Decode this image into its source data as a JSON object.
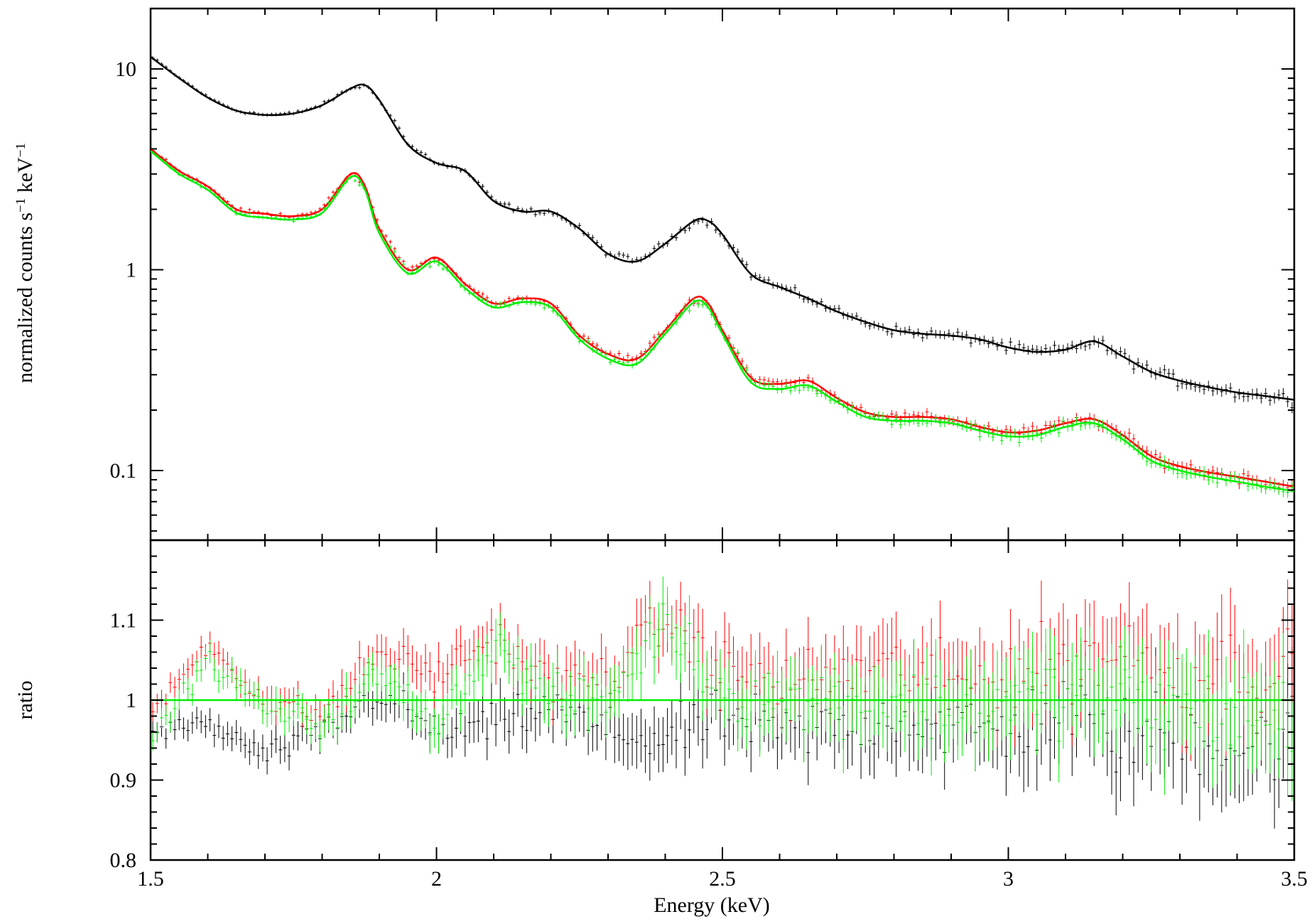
{
  "chart_data": [
    {
      "panel": "top",
      "type": "line",
      "xlabel": "Energy (keV)",
      "ylabel": "normalized counts s",
      "ylabel_sup1": "−1",
      "ylabel_mid": " keV",
      "ylabel_sup2": "−1",
      "yscale": "log",
      "xlim": [
        1.5,
        3.5
      ],
      "ylim": [
        0.045,
        20
      ],
      "xticks": [
        1.5,
        2,
        2.5,
        3,
        3.5
      ],
      "xtick_labels": [
        "1.5",
        "2",
        "2.5",
        "3",
        "3.5"
      ],
      "yticks": [
        0.1,
        1,
        10
      ],
      "ytick_labels": [
        "0.1",
        "1",
        "10"
      ],
      "grid": false,
      "series": [
        {
          "color": "#000000",
          "x": [
            1.5,
            1.55,
            1.6,
            1.65,
            1.7,
            1.75,
            1.8,
            1.85,
            1.875,
            1.9,
            1.95,
            2.0,
            2.05,
            2.1,
            2.15,
            2.2,
            2.25,
            2.3,
            2.35,
            2.4,
            2.45,
            2.475,
            2.5,
            2.55,
            2.6,
            2.65,
            2.7,
            2.75,
            2.8,
            2.85,
            2.9,
            2.95,
            3.0,
            3.05,
            3.1,
            3.15,
            3.2,
            3.25,
            3.3,
            3.35,
            3.4,
            3.45,
            3.5
          ],
          "y": [
            11.5,
            9.0,
            7.2,
            6.2,
            5.9,
            6.0,
            6.6,
            8.0,
            8.3,
            7.0,
            4.2,
            3.4,
            3.1,
            2.2,
            1.95,
            1.95,
            1.6,
            1.2,
            1.1,
            1.35,
            1.75,
            1.75,
            1.5,
            0.95,
            0.82,
            0.72,
            0.62,
            0.55,
            0.5,
            0.48,
            0.47,
            0.45,
            0.41,
            0.39,
            0.4,
            0.44,
            0.37,
            0.31,
            0.28,
            0.26,
            0.245,
            0.235,
            0.225
          ]
        },
        {
          "color": "#ff0000",
          "x": [
            1.5,
            1.55,
            1.6,
            1.65,
            1.7,
            1.75,
            1.8,
            1.85,
            1.875,
            1.9,
            1.95,
            2.0,
            2.05,
            2.1,
            2.15,
            2.2,
            2.25,
            2.3,
            2.35,
            2.4,
            2.45,
            2.475,
            2.5,
            2.55,
            2.6,
            2.65,
            2.7,
            2.75,
            2.8,
            2.85,
            2.9,
            2.95,
            3.0,
            3.05,
            3.1,
            3.15,
            3.2,
            3.25,
            3.3,
            3.35,
            3.4,
            3.45,
            3.5
          ],
          "y": [
            4.0,
            3.1,
            2.6,
            2.0,
            1.9,
            1.85,
            2.0,
            3.0,
            2.6,
            1.6,
            1.0,
            1.15,
            0.85,
            0.68,
            0.72,
            0.68,
            0.47,
            0.38,
            0.36,
            0.5,
            0.72,
            0.68,
            0.5,
            0.29,
            0.27,
            0.28,
            0.23,
            0.195,
            0.185,
            0.185,
            0.18,
            0.165,
            0.155,
            0.158,
            0.172,
            0.18,
            0.15,
            0.118,
            0.105,
            0.098,
            0.093,
            0.088,
            0.083
          ]
        },
        {
          "color": "#00ee00",
          "x": [
            1.5,
            1.55,
            1.6,
            1.65,
            1.7,
            1.75,
            1.8,
            1.85,
            1.875,
            1.9,
            1.95,
            2.0,
            2.05,
            2.1,
            2.15,
            2.2,
            2.25,
            2.3,
            2.35,
            2.4,
            2.45,
            2.475,
            2.5,
            2.55,
            2.6,
            2.65,
            2.7,
            2.75,
            2.8,
            2.85,
            2.9,
            2.95,
            3.0,
            3.05,
            3.1,
            3.15,
            3.2,
            3.25,
            3.3,
            3.35,
            3.4,
            3.45,
            3.5
          ],
          "y": [
            3.9,
            3.0,
            2.5,
            1.92,
            1.82,
            1.78,
            1.92,
            2.9,
            2.5,
            1.52,
            0.96,
            1.1,
            0.81,
            0.65,
            0.69,
            0.65,
            0.45,
            0.36,
            0.34,
            0.48,
            0.69,
            0.65,
            0.48,
            0.275,
            0.255,
            0.265,
            0.22,
            0.185,
            0.177,
            0.177,
            0.172,
            0.158,
            0.148,
            0.15,
            0.165,
            0.172,
            0.143,
            0.112,
            0.1,
            0.093,
            0.088,
            0.083,
            0.079
          ]
        }
      ]
    },
    {
      "panel": "bottom",
      "type": "scatter",
      "xlabel": "Energy (keV)",
      "ylabel": "ratio",
      "xlim": [
        1.5,
        3.5
      ],
      "ylim": [
        0.8,
        1.2
      ],
      "xticks": [
        1.5,
        2,
        2.5,
        3,
        3.5
      ],
      "xtick_labels": [
        "1.5",
        "2",
        "2.5",
        "3",
        "3.5"
      ],
      "yticks": [
        0.8,
        0.9,
        1.0,
        1.1
      ],
      "ytick_labels": [
        "0.8",
        "0.9",
        "1",
        "1.1"
      ],
      "reference_line": {
        "y": 1.0,
        "color": "#00ee00"
      },
      "grid": false,
      "series": [
        {
          "color": "#000000",
          "x": [
            1.5,
            1.6,
            1.7,
            1.8,
            1.9,
            2.0,
            2.1,
            2.2,
            2.3,
            2.4,
            2.5,
            2.6,
            2.7,
            2.8,
            2.9,
            3.0,
            3.1,
            3.2,
            3.3,
            3.4,
            3.5
          ],
          "y": [
            0.96,
            0.97,
            0.93,
            0.96,
            1.01,
            0.96,
            0.97,
            0.99,
            0.96,
            0.95,
            0.98,
            0.96,
            0.97,
            0.98,
            0.97,
            0.96,
            0.99,
            0.95,
            0.97,
            0.94,
            0.96
          ]
        },
        {
          "color": "#ff0000",
          "x": [
            1.5,
            1.6,
            1.7,
            1.8,
            1.9,
            2.0,
            2.1,
            2.2,
            2.3,
            2.4,
            2.5,
            2.6,
            2.7,
            2.8,
            2.9,
            3.0,
            3.1,
            3.2,
            3.3,
            3.4,
            3.5
          ],
          "y": [
            0.98,
            1.07,
            1.0,
            0.98,
            1.06,
            1.03,
            1.08,
            1.02,
            1.03,
            1.1,
            1.04,
            1.02,
            1.03,
            1.04,
            1.02,
            1.03,
            1.05,
            1.06,
            1.03,
            1.04,
            1.03
          ]
        },
        {
          "color": "#00ee00",
          "x": [
            1.5,
            1.6,
            1.7,
            1.8,
            1.9,
            2.0,
            2.1,
            2.2,
            2.3,
            2.4,
            2.5,
            2.6,
            2.7,
            2.8,
            2.9,
            3.0,
            3.1,
            3.2,
            3.3,
            3.4,
            3.5
          ],
          "y": [
            0.95,
            1.05,
            0.99,
            0.97,
            1.03,
            0.97,
            1.07,
            1.0,
            1.0,
            1.1,
            1.01,
            1.0,
            1.0,
            1.0,
            0.99,
            1.0,
            1.01,
            1.0,
            0.99,
            0.98,
            0.97
          ]
        }
      ]
    }
  ]
}
